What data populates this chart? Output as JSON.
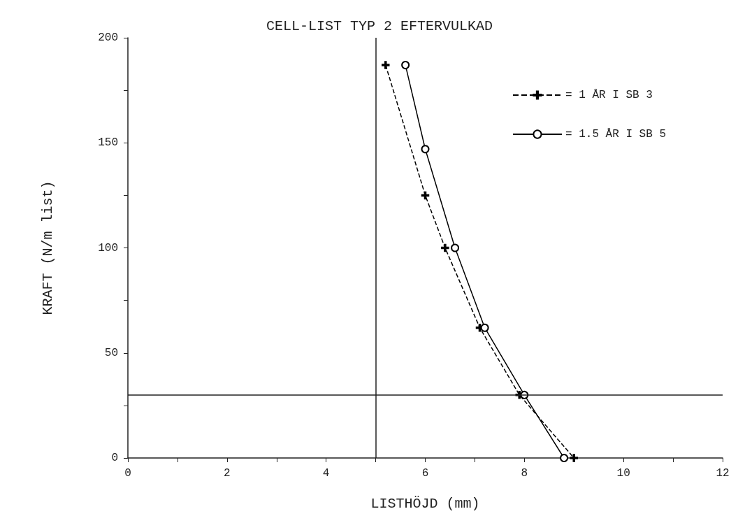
{
  "chart_data": {
    "type": "line",
    "title": "CELL-LIST TYP 2 EFTERVULKAD",
    "xlabel": "LISTHÖJD (mm)",
    "ylabel": "KRAFT (N/m list)",
    "series": [
      {
        "name": "= 1 ÅR I SB 3",
        "color": "#000000",
        "marker": "cross",
        "line_style": "dashed",
        "x": [
          5.2,
          6,
          6.4,
          7.1,
          7.9,
          9
        ],
        "values": [
          187,
          125,
          100,
          62,
          30,
          0
        ]
      },
      {
        "name": "= 1.5 ÅR I SB 5",
        "color": "#000000",
        "marker": "circle",
        "line_style": "solid",
        "x": [
          5.6,
          6,
          6.6,
          7.2,
          8,
          8.8
        ],
        "values": [
          187,
          147,
          100,
          62,
          30,
          0
        ]
      }
    ],
    "xlim": [
      0,
      12
    ],
    "ylim": [
      0,
      200
    ],
    "xticks": [
      0,
      {
        "value": 1,
        "label": null
      },
      2,
      {
        "value": 3,
        "label": null
      },
      4,
      {
        "value": 5,
        "label": null
      },
      6,
      {
        "value": 7,
        "label": null
      },
      8,
      {
        "value": 9,
        "label": null
      },
      10,
      {
        "value": 11,
        "label": null
      },
      12
    ],
    "yticks": [
      0,
      {
        "value": 25,
        "label": null
      },
      50,
      {
        "value": 75,
        "label": null
      },
      100,
      {
        "value": 125,
        "label": null
      },
      150,
      {
        "value": 175,
        "label": null
      },
      200
    ],
    "ref_lines": [
      {
        "axis": "x",
        "value": 5,
        "label": null
      },
      {
        "axis": "y",
        "value": 30,
        "label": null
      }
    ],
    "legend": "top right"
  }
}
